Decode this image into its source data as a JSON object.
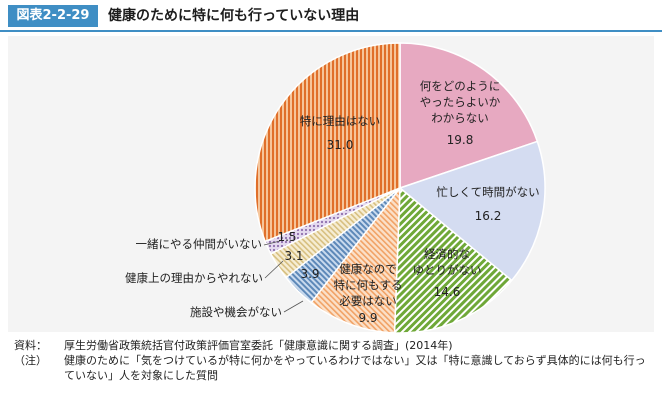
{
  "figure": {
    "tag": "図表2-2-29",
    "title": "健康のために特に何も行っていない理由"
  },
  "chart_data": {
    "type": "pie",
    "unit": "%",
    "slices": [
      {
        "label": "何をどのように\nやったらよいか\nわからない",
        "value": 19.8,
        "value_text": "19.8",
        "color": "#e7a9c1"
      },
      {
        "label": "忙しくて時間がない",
        "value": 16.2,
        "value_text": "16.2",
        "color": "#d4dcf1"
      },
      {
        "label": "経済的な\nゆとりがない",
        "value": 14.6,
        "value_text": "14.6",
        "color": "#6fa838"
      },
      {
        "label": "健康なので\n特に何もする\n必要はない",
        "value": 9.9,
        "value_text": "9.9",
        "color": "#f1a265"
      },
      {
        "label": "施設や機会がない",
        "value": 3.9,
        "value_text": "3.9",
        "color": "#6f95bd"
      },
      {
        "label": "健康上の理由からやれない",
        "value": 3.1,
        "value_text": "3.1",
        "color": "#e4d19e"
      },
      {
        "label": "一緒にやる仲間がいない",
        "value": 1.5,
        "value_text": "1.5",
        "color": "#b8a1cb"
      },
      {
        "label": "特に理由はない",
        "value": 31.0,
        "value_text": "31.0",
        "color": "#e06f2a"
      }
    ],
    "start": "12 o'clock",
    "direction": "clockwise"
  },
  "notes": {
    "source_key": "資料：",
    "source_text": "厚生労働省政策統括官付政策評価官室委託「健康意識に関する調査」(2014年)",
    "note_key": "（注）",
    "note_text": "健康のために「気をつけているが特に何かをやっているわけではない」又は「特に意識しておらず具体的には何も行っていない」人を対象にした質問"
  }
}
